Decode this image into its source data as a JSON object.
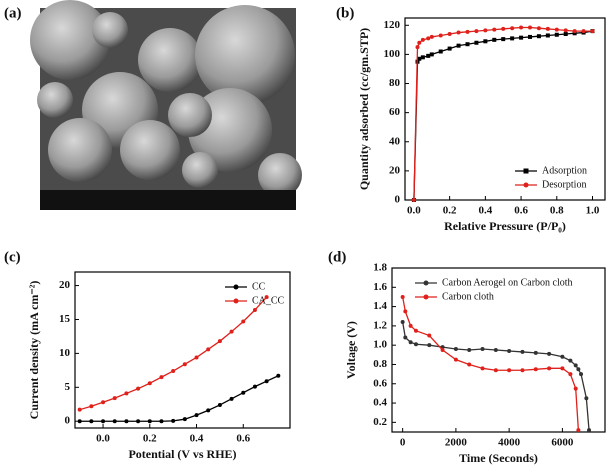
{
  "image_panel": {
    "panel_label": "(a)"
  },
  "chart_data": [
    {
      "type": "line",
      "panel_label": "(b)",
      "x_label": "Relative Pressure (P/P₀)",
      "y_label": "Quantity adsorbed (cc/gm.STP)",
      "x": [
        0,
        0.02,
        0.03,
        0.05,
        0.08,
        0.1,
        0.15,
        0.2,
        0.25,
        0.3,
        0.35,
        0.4,
        0.45,
        0.5,
        0.55,
        0.6,
        0.65,
        0.7,
        0.75,
        0.8,
        0.85,
        0.9,
        0.95,
        1.0
      ],
      "series": [
        {
          "name": "Adsorption",
          "color": "#000000",
          "marker": "square",
          "values": [
            0,
            95,
            97,
            98,
            99,
            100,
            102,
            104,
            106,
            107,
            108,
            109,
            110,
            110.5,
            111,
            111.5,
            112,
            112.5,
            113,
            113.5,
            114,
            114.5,
            115,
            116
          ]
        },
        {
          "name": "Desorption",
          "color": "#e0201b",
          "marker": "circle",
          "values": [
            0,
            105,
            108,
            110,
            111,
            112,
            113,
            114,
            115,
            115.5,
            116,
            116.5,
            117,
            117.5,
            118,
            118.5,
            118.5,
            118,
            117.5,
            117,
            116.5,
            116,
            116,
            116
          ]
        }
      ],
      "xlim": [
        -0.05,
        1.07
      ],
      "ylim": [
        0,
        125
      ],
      "xticks": [
        {
          "value": 0,
          "label": "0.0"
        },
        0.2,
        0.4,
        0.6,
        0.8,
        {
          "value": 1,
          "label": "1.0"
        }
      ],
      "yticks": [
        0,
        20,
        40,
        60,
        80,
        100,
        120
      ],
      "legend": "lower right"
    },
    {
      "type": "line",
      "panel_label": "(c)",
      "x_label": "Potential (V vs RHE)",
      "y_label": "Current density (mA cm⁻²)",
      "x": [
        -0.1,
        -0.05,
        0,
        0.05,
        0.1,
        0.15,
        0.2,
        0.25,
        0.3,
        0.35,
        0.4,
        0.45,
        0.5,
        0.55,
        0.6,
        0.65,
        0.7,
        0.75
      ],
      "series": [
        {
          "name": "CC",
          "color": "#000000",
          "marker": "circle",
          "values": [
            0,
            0,
            0,
            0,
            0,
            0,
            0,
            0,
            0.05,
            0.3,
            0.9,
            1.6,
            2.4,
            3.3,
            4.2,
            5.1,
            5.9,
            6.7
          ]
        },
        {
          "name": "CA_CC",
          "color": "#e0201b",
          "marker": "circle",
          "values": [
            1.7,
            2.2,
            2.8,
            3.4,
            4.1,
            4.8,
            5.6,
            6.5,
            7.4,
            8.4,
            9.4,
            10.6,
            11.8,
            13.2,
            14.7,
            16.4,
            18.3,
            null
          ]
        }
      ],
      "xlim": [
        -0.12,
        0.8
      ],
      "ylim": [
        -1,
        22
      ],
      "xticks": [
        {
          "value": 0,
          "label": "0.0"
        },
        0.2,
        0.4,
        0.6
      ],
      "yticks": [
        0,
        5,
        10,
        15,
        20
      ],
      "legend": "upper right"
    },
    {
      "type": "line",
      "panel_label": "(d)",
      "x_label": "Time (Seconds)",
      "y_label": "Voltage (V)",
      "x": [
        0,
        100,
        300,
        500,
        1000,
        1500,
        2000,
        2500,
        3000,
        3500,
        4000,
        4500,
        5000,
        5500,
        6000,
        6300,
        6500,
        6600,
        6700,
        6900,
        7000
      ],
      "series": [
        {
          "name": "Carbon Aerogel on Carbon cloth",
          "color": "#333333",
          "marker": "circle",
          "values": [
            1.24,
            1.08,
            1.03,
            1.01,
            1.0,
            0.98,
            0.96,
            0.95,
            0.96,
            0.95,
            0.94,
            0.93,
            0.92,
            0.91,
            0.88,
            0.84,
            0.79,
            0.75,
            0.7,
            0.45,
            0.12
          ]
        },
        {
          "name": "Carbon cloth",
          "color": "#e0201b",
          "marker": "circle",
          "values": [
            1.5,
            1.35,
            1.2,
            1.15,
            1.1,
            0.95,
            0.85,
            0.8,
            0.76,
            0.74,
            0.74,
            0.74,
            0.75,
            0.76,
            0.76,
            0.7,
            0.55,
            0.12,
            null,
            null,
            null
          ]
        }
      ],
      "xlim": [
        -400,
        7600
      ],
      "ylim": [
        0.1,
        1.8
      ],
      "xticks": [
        0,
        2000,
        4000,
        6000
      ],
      "yticks": [
        0.2,
        0.4,
        0.6,
        0.8,
        {
          "value": 1,
          "label": "1.0"
        },
        1.2,
        1.4,
        1.6,
        1.8
      ],
      "legend": "upper right"
    }
  ]
}
